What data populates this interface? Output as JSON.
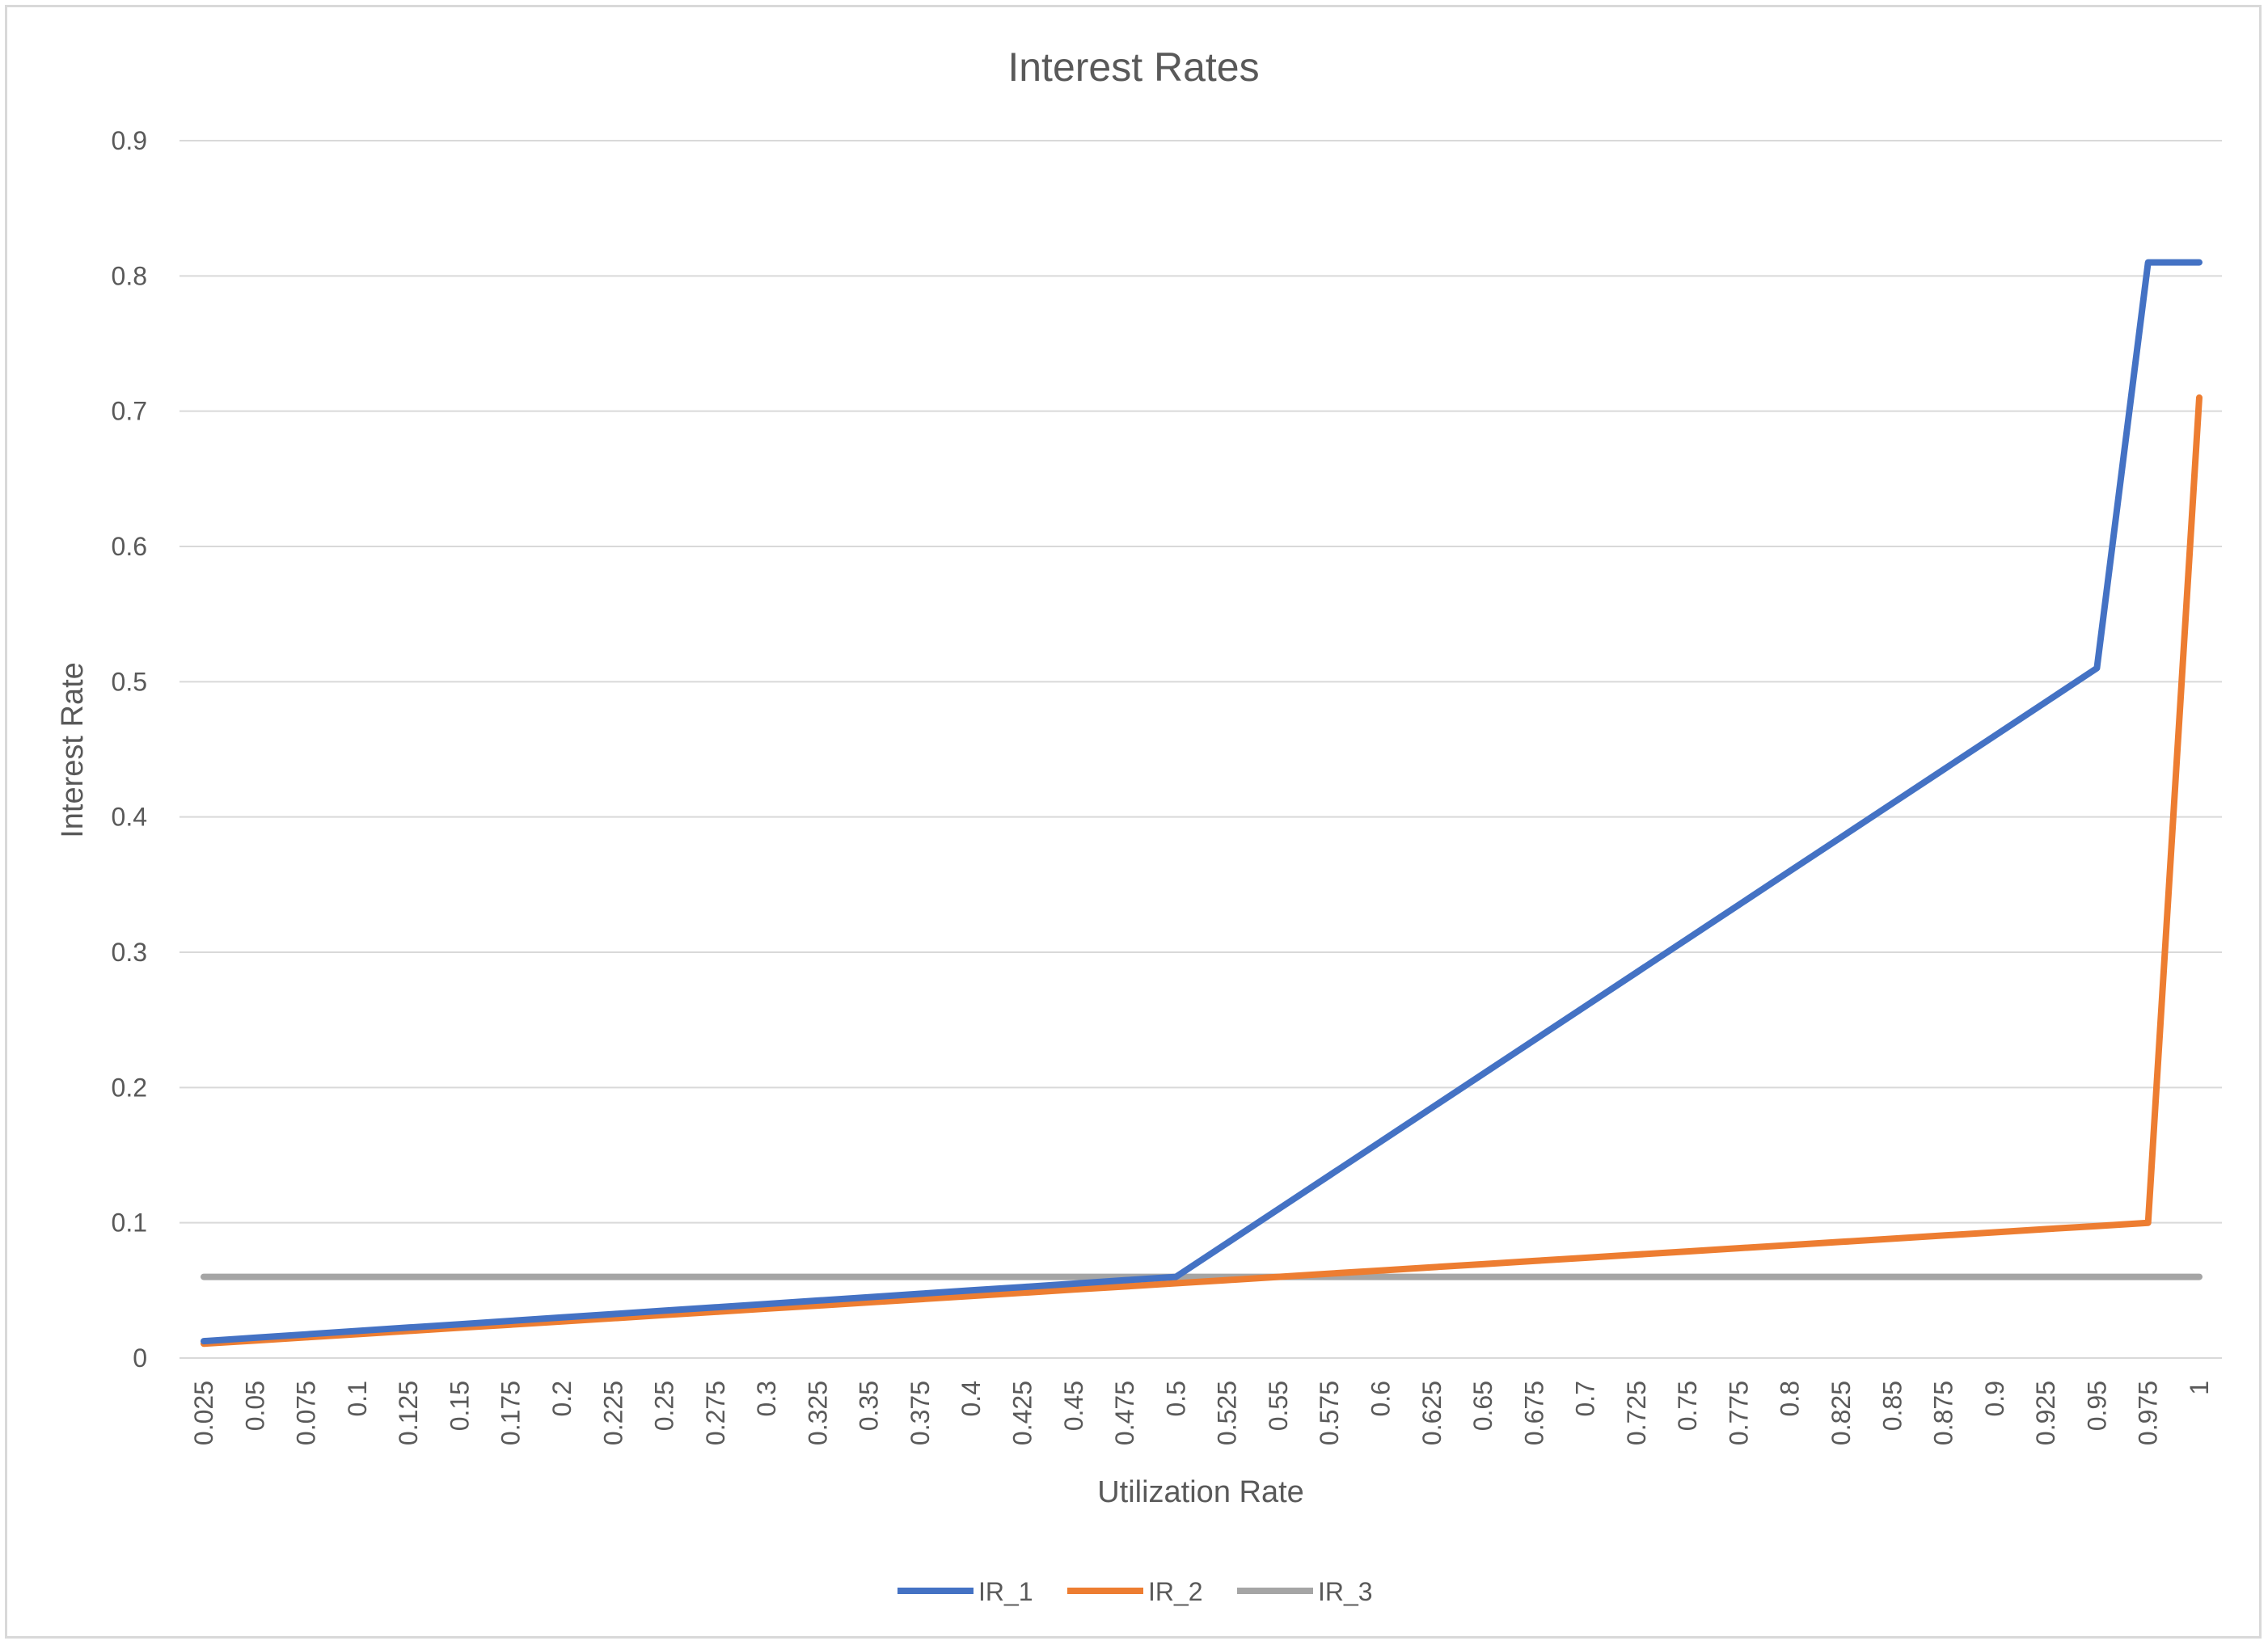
{
  "chart_data": {
    "type": "line",
    "title": "Interest Rates",
    "xlabel": "Utilization Rate",
    "ylabel": "Interest Rate",
    "ylim": [
      0,
      0.9
    ],
    "yticks": [
      "0",
      "0.1",
      "0.2",
      "0.3",
      "0.4",
      "0.5",
      "0.6",
      "0.7",
      "0.8",
      "0.9"
    ],
    "grid": true,
    "legend_position": "bottom",
    "categories": [
      "0.025",
      "0.05",
      "0.075",
      "0.1",
      "0.125",
      "0.15",
      "0.175",
      "0.2",
      "0.225",
      "0.25",
      "0.275",
      "0.3",
      "0.325",
      "0.35",
      "0.375",
      "0.4",
      "0.425",
      "0.45",
      "0.475",
      "0.5",
      "0.525",
      "0.55",
      "0.575",
      "0.6",
      "0.625",
      "0.65",
      "0.675",
      "0.7",
      "0.725",
      "0.75",
      "0.775",
      "0.8",
      "0.825",
      "0.85",
      "0.875",
      "0.9",
      "0.925",
      "0.95",
      "0.975",
      "1"
    ],
    "series": [
      {
        "name": "IR_1",
        "color": "#4472c4",
        "values": [
          0.0125,
          0.015,
          0.0175,
          0.02,
          0.0225,
          0.025,
          0.0275,
          0.03,
          0.0325,
          0.035,
          0.0375,
          0.04,
          0.0425,
          0.045,
          0.0475,
          0.05,
          0.0525,
          0.055,
          0.0575,
          0.06,
          0.085,
          0.11,
          0.135,
          0.16,
          0.185,
          0.21,
          0.235,
          0.26,
          0.285,
          0.31,
          0.335,
          0.36,
          0.385,
          0.41,
          0.435,
          0.46,
          0.485,
          0.51,
          0.81,
          0.81
        ]
      },
      {
        "name": "IR_2",
        "color": "#ed7d31",
        "values": [
          0.0106,
          0.0129,
          0.0153,
          0.0176,
          0.02,
          0.0224,
          0.0247,
          0.0271,
          0.0294,
          0.0318,
          0.0341,
          0.0365,
          0.0388,
          0.0412,
          0.0435,
          0.0459,
          0.0482,
          0.0506,
          0.0529,
          0.0553,
          0.0576,
          0.06,
          0.0624,
          0.0647,
          0.0671,
          0.0694,
          0.0718,
          0.0741,
          0.0765,
          0.0788,
          0.0812,
          0.0835,
          0.0859,
          0.0882,
          0.0906,
          0.0929,
          0.0953,
          0.0976,
          0.1,
          0.71
        ]
      },
      {
        "name": "IR_3",
        "color": "#a5a5a5",
        "values": [
          0.06,
          0.06,
          0.06,
          0.06,
          0.06,
          0.06,
          0.06,
          0.06,
          0.06,
          0.06,
          0.06,
          0.06,
          0.06,
          0.06,
          0.06,
          0.06,
          0.06,
          0.06,
          0.06,
          0.06,
          0.06,
          0.06,
          0.06,
          0.06,
          0.06,
          0.06,
          0.06,
          0.06,
          0.06,
          0.06,
          0.06,
          0.06,
          0.06,
          0.06,
          0.06,
          0.06,
          0.06,
          0.06,
          0.06,
          0.06
        ]
      }
    ]
  }
}
